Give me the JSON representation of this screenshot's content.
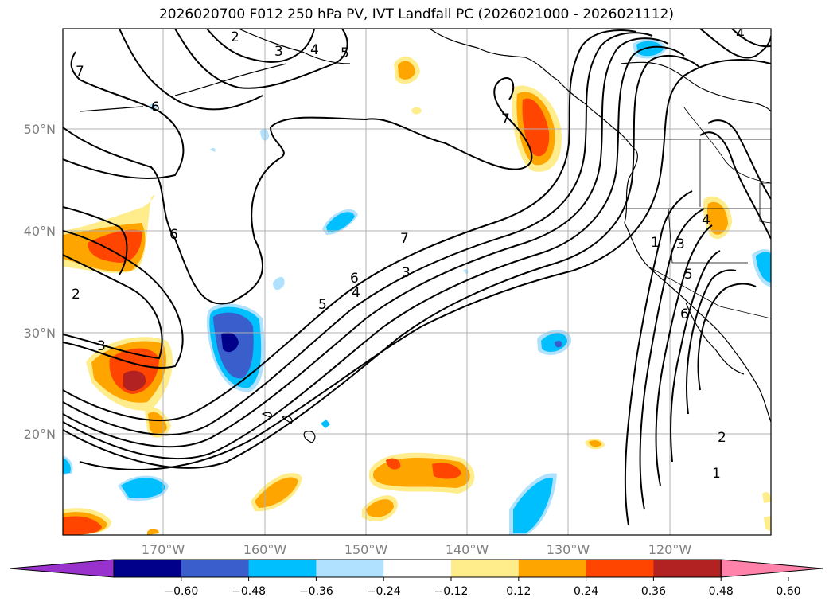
{
  "title": "2026020700 F012 250 hPa PV, IVT Landfall PC (2026021000 - 2026021112)",
  "lon_labels": [
    "170°W",
    "160°W",
    "150°W",
    "140°W",
    "130°W",
    "120°W"
  ],
  "lat_labels": [
    "50°N",
    "40°N",
    "30°N",
    "20°N"
  ],
  "colorbar": {
    "ticks": [
      "−0.60",
      "−0.48",
      "−0.36",
      "−0.24",
      "−0.12",
      "0.12",
      "0.24",
      "0.36",
      "0.48",
      "0.60"
    ],
    "colors": [
      "#9932cc",
      "#00008b",
      "#3a5fcd",
      "#00bfff",
      "#b0e2ff",
      "#ffffff",
      "#ffec8b",
      "#ffa500",
      "#ff4500",
      "#b22222",
      "#ff82ab"
    ]
  },
  "contour_labels": {
    "c2": "2",
    "c3": "3",
    "c4": "4",
    "c5": "5",
    "c6": "6",
    "c7": "7",
    "c1": "1"
  }
}
